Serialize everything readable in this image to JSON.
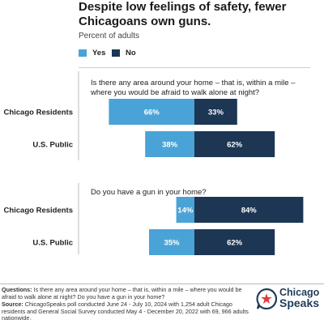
{
  "title": "Despite low feelings of safety, fewer Chicagoans own guns.",
  "subtitle": "Percent of adults",
  "colors": {
    "yes": "#4aa3d6",
    "no": "#1c3654",
    "yes_text": "#ffffff",
    "no_text": "#ffffff"
  },
  "legend": [
    {
      "label": "Yes",
      "color": "#4aa3d6"
    },
    {
      "label": "No",
      "color": "#1c3654"
    }
  ],
  "chart_data": {
    "type": "bar",
    "orientation": "diverging-horizontal",
    "series_names": [
      "Yes",
      "No"
    ],
    "groups": [
      {
        "question": "Is there any area around your home – that is, within a mile – where you would be afraid to walk alone at night?",
        "rows": [
          {
            "label": "Chicago Residents",
            "yes": 66,
            "no": 33,
            "yes_label": "66%",
            "no_label": "33%"
          },
          {
            "label": "U.S. Public",
            "yes": 38,
            "no": 62,
            "yes_label": "38%",
            "no_label": "62%"
          }
        ]
      },
      {
        "question": "Do you have a gun in your home?",
        "rows": [
          {
            "label": "Chicago Residents",
            "yes": 14,
            "no": 84,
            "yes_label": "14%",
            "no_label": "84%"
          },
          {
            "label": "U.S. Public",
            "yes": 35,
            "no": 62,
            "yes_label": "35%",
            "no_label": "62%"
          }
        ]
      }
    ]
  },
  "footer": {
    "questions_label": "Questions:",
    "questions_text": " Is there any area around your home – that is, within a mile – where you would be afraid to walk alone at night? Do you have a gun in your home?",
    "source_label": "Source:",
    "source_text": " ChicagoSpeaks poll conducted June 24 - July 10, 2024 with 1,254 adult Chicago residents and General Social Survey conducted May 4 - December 20, 2022 with 69, 966 adults nationwide."
  },
  "logo": {
    "line1": "Chicago",
    "line2": "Speaks",
    "icon": "chicago-star-speech-bubble-icon"
  }
}
